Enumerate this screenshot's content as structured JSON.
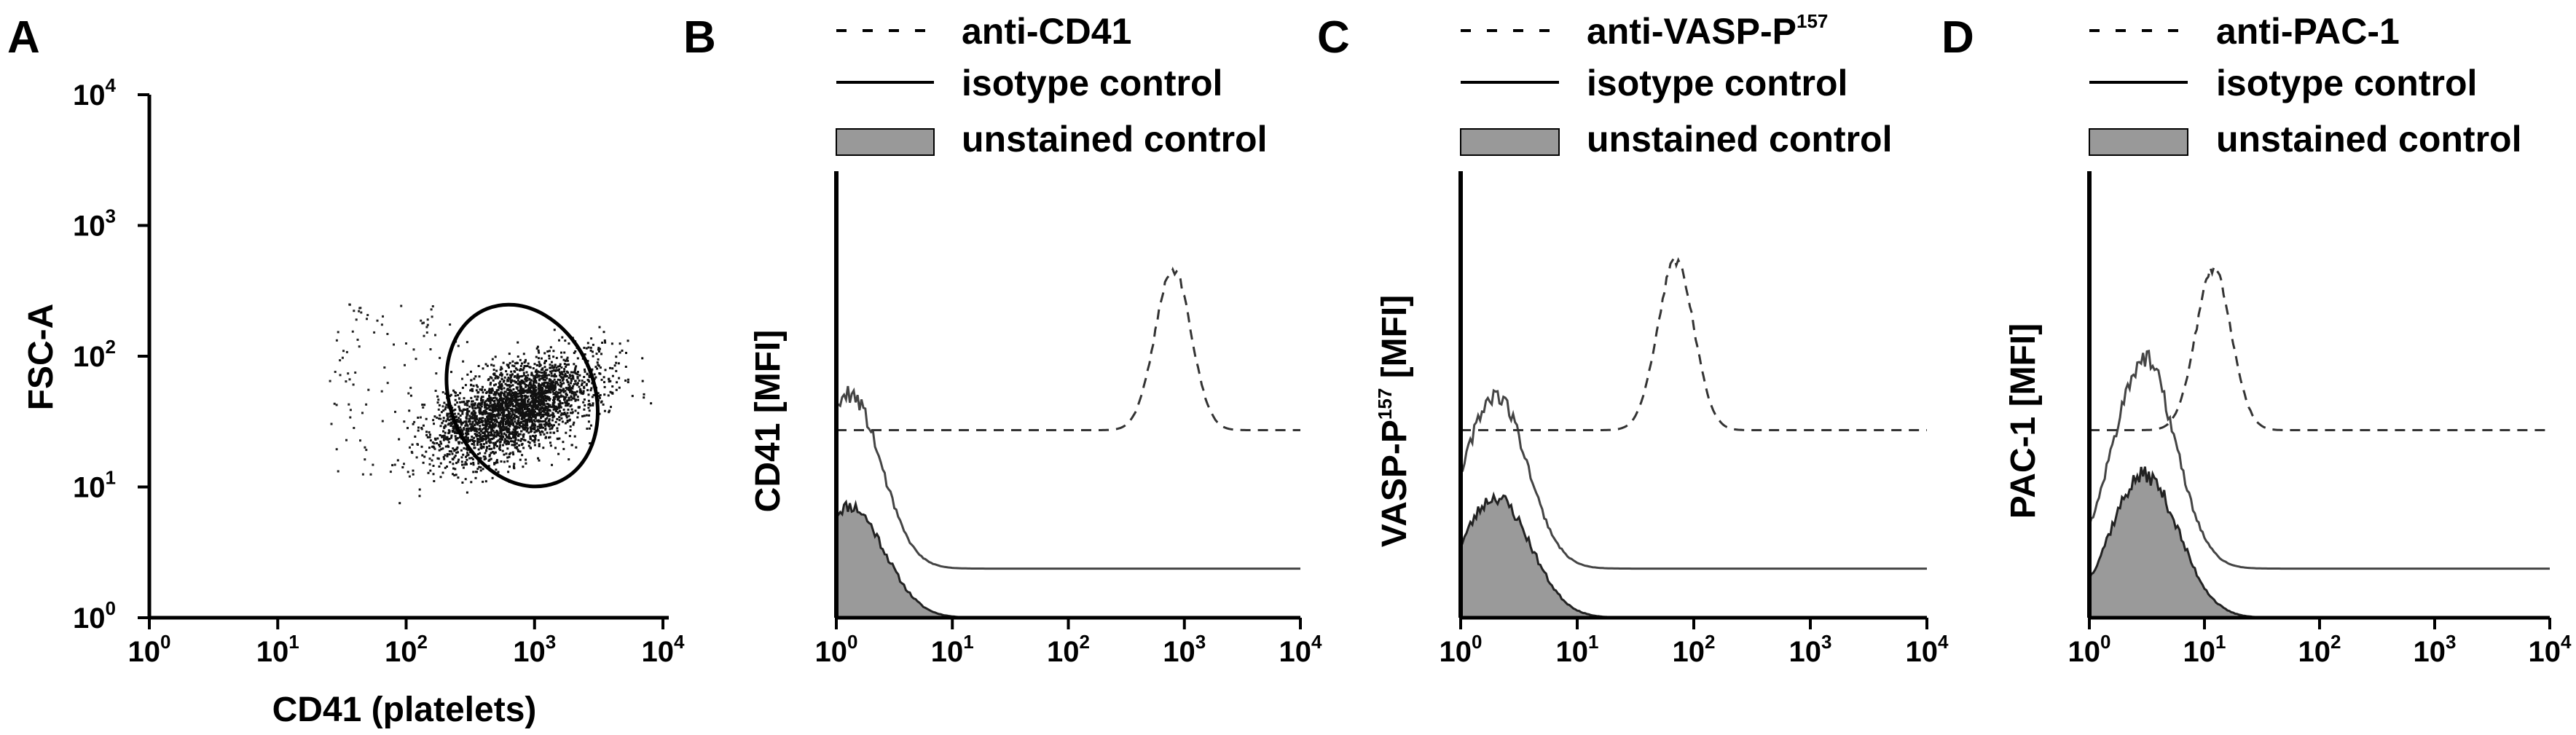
{
  "panels": {
    "A": {
      "letter": "A",
      "chart_data": {
        "type": "scatter",
        "xlabel": "CD41 (platelets)",
        "ylabel": "FSC-A",
        "x_scale": "log",
        "y_scale": "log",
        "xlim": [
          1,
          10000
        ],
        "ylim": [
          1,
          10000
        ],
        "x_tick_labels": [
          {
            "base": "10",
            "exp": "0"
          },
          {
            "base": "10",
            "exp": "1"
          },
          {
            "base": "10",
            "exp": "2"
          },
          {
            "base": "10",
            "exp": "3"
          },
          {
            "base": "10",
            "exp": "4"
          }
        ],
        "y_tick_labels": [
          {
            "base": "10",
            "exp": "0"
          },
          {
            "base": "10",
            "exp": "1"
          },
          {
            "base": "10",
            "exp": "2"
          },
          {
            "base": "10",
            "exp": "3"
          },
          {
            "base": "10",
            "exp": "4"
          }
        ],
        "cluster": {
          "center_x": 700,
          "center_y": 40,
          "log_spread_x": 0.32,
          "log_spread_y": 0.2,
          "n_points": 2800
        },
        "sparse_points_range": {
          "x": [
            25,
            300
          ],
          "y": [
            12,
            260
          ],
          "n_points": 120
        },
        "gate": {
          "type": "ellipse",
          "center_x": 800,
          "center_y": 50,
          "x_range": [
            180,
            5000
          ],
          "y_range": [
            9,
            260
          ]
        }
      }
    },
    "B": {
      "letter": "B",
      "chart_data": {
        "type": "line",
        "xlabel": "",
        "ylabel": "CD41 [MFI]",
        "x_scale": "log",
        "xlim": [
          1,
          10000
        ],
        "x_tick_labels": [
          {
            "base": "10",
            "exp": "0"
          },
          {
            "base": "10",
            "exp": "1"
          },
          {
            "base": "10",
            "exp": "2"
          },
          {
            "base": "10",
            "exp": "3"
          },
          {
            "base": "10",
            "exp": "4"
          }
        ],
        "legend": [
          {
            "label": "anti-CD41",
            "style": "dashed"
          },
          {
            "label": "isotype control",
            "style": "solid"
          },
          {
            "label": "unstained control",
            "style": "filled"
          }
        ],
        "series": [
          {
            "name": "anti-CD41",
            "peak_x": 800,
            "peak_rel": 0.78
          },
          {
            "name": "isotype control",
            "peak_x": 1.3,
            "peak_rel": 0.5
          },
          {
            "name": "unstained control",
            "peak_x": 1.3,
            "peak_rel": 0.25
          }
        ]
      }
    },
    "C": {
      "letter": "C",
      "chart_data": {
        "type": "line",
        "xlabel": "",
        "ylabel": "VASP-P",
        "ylabel_sup": "157",
        "ylabel_suffix": " [MFI]",
        "x_scale": "log",
        "xlim": [
          1,
          10000
        ],
        "x_tick_labels": [
          {
            "base": "10",
            "exp": "0"
          },
          {
            "base": "10",
            "exp": "1"
          },
          {
            "base": "10",
            "exp": "2"
          },
          {
            "base": "10",
            "exp": "3"
          },
          {
            "base": "10",
            "exp": "4"
          }
        ],
        "legend": [
          {
            "label": "anti-VASP-P",
            "label_sup": "157",
            "style": "dashed"
          },
          {
            "label": "isotype control",
            "style": "solid"
          },
          {
            "label": "unstained control",
            "style": "filled"
          }
        ],
        "series": [
          {
            "name": "anti-VASP-P157",
            "peak_x": 70,
            "peak_rel": 0.8
          },
          {
            "name": "isotype control",
            "peak_x": 2,
            "peak_rel": 0.5
          },
          {
            "name": "unstained control",
            "peak_x": 2,
            "peak_rel": 0.27
          }
        ]
      }
    },
    "D": {
      "letter": "D",
      "chart_data": {
        "type": "line",
        "xlabel": "",
        "ylabel": "PAC-1 [MFI]",
        "x_scale": "log",
        "xlim": [
          1,
          10000
        ],
        "x_tick_labels": [
          {
            "base": "10",
            "exp": "0"
          },
          {
            "base": "10",
            "exp": "1"
          },
          {
            "base": "10",
            "exp": "2"
          },
          {
            "base": "10",
            "exp": "3"
          },
          {
            "base": "10",
            "exp": "4"
          }
        ],
        "legend": [
          {
            "label": "anti-PAC-1",
            "style": "dashed"
          },
          {
            "label": "isotype control",
            "style": "solid"
          },
          {
            "label": "unstained control",
            "style": "filled"
          }
        ],
        "series": [
          {
            "name": "anti-PAC-1",
            "peak_x": 12,
            "peak_rel": 0.78
          },
          {
            "name": "isotype control",
            "peak_x": 3,
            "peak_rel": 0.58
          },
          {
            "name": "unstained control",
            "peak_x": 3,
            "peak_rel": 0.32
          }
        ]
      }
    }
  }
}
